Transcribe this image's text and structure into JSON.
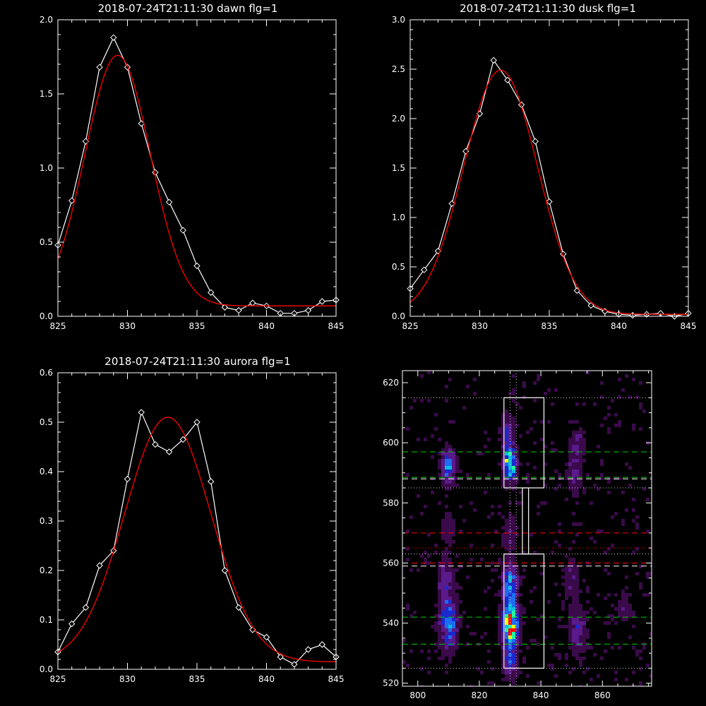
{
  "chart_data": [
    {
      "id": "dawn",
      "type": "line",
      "title": "2018-07-24T21:11:30 dawn flg=1",
      "xlim": [
        825,
        845
      ],
      "ylim": [
        0.0,
        2.0
      ],
      "xticks": [
        825,
        830,
        835,
        840,
        845
      ],
      "yticks": [
        0.0,
        0.5,
        1.0,
        1.5,
        2.0
      ],
      "ytick_labels": [
        "0.0",
        "0.5",
        "1.0",
        "1.5",
        "2.0"
      ],
      "series": [
        {
          "style": "line-diamonds",
          "color": "#ffffff",
          "x": [
            825,
            826,
            827,
            828,
            829,
            830,
            831,
            832,
            833,
            834,
            835,
            836,
            837,
            838,
            839,
            840,
            841,
            842,
            843,
            844,
            845
          ],
          "y": [
            0.48,
            0.78,
            1.18,
            1.68,
            1.88,
            1.68,
            1.3,
            0.97,
            0.77,
            0.58,
            0.34,
            0.16,
            0.06,
            0.04,
            0.09,
            0.07,
            0.02,
            0.02,
            0.04,
            0.1,
            0.11
          ]
        },
        {
          "style": "gaussian-fit",
          "color": "#ff0000",
          "amplitude": 1.69,
          "center": 829.3,
          "sigma": 2.35,
          "offset": 0.07
        }
      ]
    },
    {
      "id": "dusk",
      "type": "line",
      "title": "2018-07-24T21:11:30 dusk flg=1",
      "xlim": [
        825,
        845
      ],
      "ylim": [
        0.0,
        3.0
      ],
      "xticks": [
        825,
        830,
        835,
        840,
        845
      ],
      "yticks": [
        0.0,
        0.5,
        1.0,
        1.5,
        2.0,
        2.5,
        3.0
      ],
      "ytick_labels": [
        "0.0",
        "0.5",
        "1.0",
        "1.5",
        "2.0",
        "2.5",
        "3.0"
      ],
      "series": [
        {
          "style": "line-diamonds",
          "color": "#ffffff",
          "x": [
            825,
            826,
            827,
            828,
            829,
            830,
            831,
            832,
            833,
            834,
            835,
            836,
            837,
            838,
            839,
            840,
            841,
            842,
            843,
            844,
            845
          ],
          "y": [
            0.28,
            0.47,
            0.66,
            1.14,
            1.67,
            2.05,
            2.59,
            2.39,
            2.14,
            1.77,
            1.16,
            0.63,
            0.26,
            0.11,
            0.05,
            0.02,
            0.01,
            0.02,
            0.03,
            0.0,
            0.03
          ]
        },
        {
          "style": "gaussian-fit",
          "color": "#ff0000",
          "amplitude": 2.47,
          "center": 831.5,
          "sigma": 2.65,
          "offset": 0.02
        }
      ]
    },
    {
      "id": "aurora",
      "type": "line",
      "title": "2018-07-24T21:11:30 aurora flg=1",
      "xlim": [
        825,
        845
      ],
      "ylim": [
        0.0,
        0.6
      ],
      "xticks": [
        825,
        830,
        835,
        840,
        845
      ],
      "yticks": [
        0.0,
        0.1,
        0.2,
        0.3,
        0.4,
        0.5,
        0.6
      ],
      "ytick_labels": [
        "0.0",
        "0.1",
        "0.2",
        "0.3",
        "0.4",
        "0.5",
        "0.6"
      ],
      "series": [
        {
          "style": "line-diamonds",
          "color": "#ffffff",
          "x": [
            825,
            826,
            827,
            828,
            829,
            830,
            831,
            832,
            833,
            834,
            835,
            836,
            837,
            838,
            839,
            840,
            841,
            842,
            843,
            844,
            845
          ],
          "y": [
            0.035,
            0.092,
            0.125,
            0.21,
            0.24,
            0.385,
            0.52,
            0.455,
            0.44,
            0.465,
            0.5,
            0.38,
            0.2,
            0.125,
            0.08,
            0.065,
            0.025,
            0.01,
            0.04,
            0.05,
            0.025
          ]
        },
        {
          "style": "gaussian-fit",
          "color": "#ff0000",
          "amplitude": 0.495,
          "center": 832.9,
          "sigma": 3.1,
          "offset": 0.015
        }
      ]
    },
    {
      "id": "image",
      "type": "heatmap",
      "xlim": [
        795,
        876
      ],
      "ylim": [
        519,
        624
      ],
      "xticks": [
        800,
        820,
        840,
        860
      ],
      "yticks": [
        520,
        540,
        560,
        580,
        600,
        620
      ],
      "colormap": [
        "#000000",
        "#3a0a4a",
        "#5a1a8a",
        "#1a28d0",
        "#1e6cf0",
        "#00c0e0",
        "#20ffa0",
        "#ffff00",
        "#ff0000"
      ],
      "blobs": [
        {
          "x": 810,
          "y": 592,
          "sx": 1.4,
          "sy": 3.5,
          "peak": 0.45
        },
        {
          "x": 810,
          "y": 540,
          "sx": 1.6,
          "sy": 5.0,
          "peak": 0.5
        },
        {
          "x": 809,
          "y": 553,
          "sx": 1.4,
          "sy": 5.0,
          "peak": 0.25
        },
        {
          "x": 830,
          "y": 593,
          "sx": 1.3,
          "sy": 3.2,
          "peak": 0.8
        },
        {
          "x": 829,
          "y": 603,
          "sx": 1.2,
          "sy": 4.0,
          "peak": 0.25
        },
        {
          "x": 830,
          "y": 539,
          "sx": 1.5,
          "sy": 4.5,
          "peak": 0.95
        },
        {
          "x": 830,
          "y": 552,
          "sx": 1.4,
          "sy": 4.5,
          "peak": 0.5
        },
        {
          "x": 830,
          "y": 527,
          "sx": 1.3,
          "sy": 3.0,
          "peak": 0.3
        },
        {
          "x": 851,
          "y": 590,
          "sx": 1.5,
          "sy": 4.0,
          "peak": 0.18
        },
        {
          "x": 852,
          "y": 600,
          "sx": 1.4,
          "sy": 3.0,
          "peak": 0.15
        },
        {
          "x": 852,
          "y": 538,
          "sx": 1.6,
          "sy": 5.0,
          "peak": 0.22
        },
        {
          "x": 850,
          "y": 555,
          "sx": 1.5,
          "sy": 4.0,
          "peak": 0.12
        },
        {
          "x": 867,
          "y": 545,
          "sx": 1.5,
          "sy": 4.0,
          "peak": 0.08
        },
        {
          "x": 830,
          "y": 570,
          "sx": 1.5,
          "sy": 4.0,
          "peak": 0.1
        },
        {
          "x": 810,
          "y": 572,
          "sx": 1.6,
          "sy": 4.0,
          "peak": 0.08
        }
      ],
      "boxes": [
        {
          "x0": 828,
          "x1": 841,
          "y0": 585,
          "y1": 615,
          "color": "#ffffff"
        },
        {
          "x0": 834,
          "x1": 836,
          "y0": 563,
          "y1": 585,
          "color": "#ffffff"
        },
        {
          "x0": 828,
          "x1": 841,
          "y0": 525,
          "y1": 563,
          "color": "#ffffff"
        }
      ],
      "hlines": [
        {
          "y": 615,
          "color": "#cccccc",
          "dash": "1,3"
        },
        {
          "y": 597,
          "color": "#00cc00",
          "dash": "8,5"
        },
        {
          "y": 588.5,
          "color": "#00cc00",
          "dash": "8,5"
        },
        {
          "y": 588,
          "color": "#ffffff",
          "dash": "8,5"
        },
        {
          "y": 585,
          "color": "#cccccc",
          "dash": "1,3"
        },
        {
          "y": 570,
          "color": "#ff0000",
          "dash": "8,5"
        },
        {
          "y": 565,
          "color": "#ff0000",
          "dash": "1,3"
        },
        {
          "y": 563,
          "color": "#cccccc",
          "dash": "1,3"
        },
        {
          "y": 560,
          "color": "#ff0000",
          "dash": "8,5"
        },
        {
          "y": 559,
          "color": "#ffffff",
          "dash": "8,5"
        },
        {
          "y": 542,
          "color": "#00cc00",
          "dash": "8,5"
        },
        {
          "y": 533,
          "color": "#00cc00",
          "dash": "8,5"
        },
        {
          "y": 525,
          "color": "#cccccc",
          "dash": "1,3"
        }
      ],
      "vlines": [
        {
          "x": 830,
          "color": "#cccccc",
          "dash": "1,3"
        },
        {
          "x": 832,
          "color": "#cccccc",
          "dash": "1,3"
        }
      ]
    }
  ]
}
